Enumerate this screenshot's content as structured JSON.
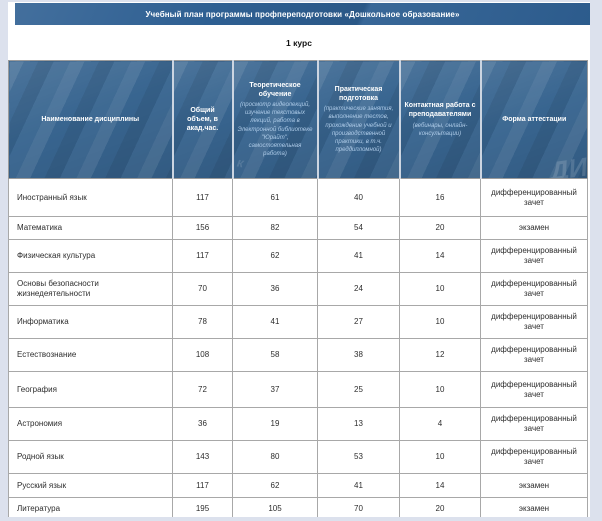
{
  "page": {
    "title": "Учебный план программы профпереподготовки «Дошкольное образование»",
    "course_label": "1 курс"
  },
  "table": {
    "columns": [
      {
        "title": "Наименование дисциплины",
        "subtitle": ""
      },
      {
        "title": "Общий объем, в акад.час.",
        "subtitle": ""
      },
      {
        "title": "Теоретическое обучение",
        "subtitle": "(просмотр видеолекций, изучение текстовых лекций, работа в Электронной библиотеке \"Юрайт\", самостоятельная работа)"
      },
      {
        "title": "Практическая подготовка",
        "subtitle": "(практические занятия, выполнение тестов, прохождение учебной и производственной практики, в т.ч. преддипломной)"
      },
      {
        "title": "Контактная работа с преподавателями",
        "subtitle": "(вебинары, онлайн-консультации)"
      },
      {
        "title": "Форма аттестации",
        "subtitle": ""
      }
    ],
    "rows": [
      {
        "discipline": "Иностранный язык",
        "total": "117",
        "theory": "61",
        "practice": "40",
        "contact": "16",
        "assessment": "дифференцированный зачет"
      },
      {
        "discipline": "Математика",
        "total": "156",
        "theory": "82",
        "practice": "54",
        "contact": "20",
        "assessment": "экзамен"
      },
      {
        "discipline": "Физическая культура",
        "total": "117",
        "theory": "62",
        "practice": "41",
        "contact": "14",
        "assessment": "дифференцированный зачет"
      },
      {
        "discipline": "Основы безопасности жизнедеятельности",
        "total": "70",
        "theory": "36",
        "practice": "24",
        "contact": "10",
        "assessment": "дифференцированный зачет"
      },
      {
        "discipline": "Информатика",
        "total": "78",
        "theory": "41",
        "practice": "27",
        "contact": "10",
        "assessment": "дифференцированный зачет"
      },
      {
        "discipline": "Естествознание",
        "total": "108",
        "theory": "58",
        "practice": "38",
        "contact": "12",
        "assessment": "дифференцированный зачет"
      },
      {
        "discipline": "География",
        "total": "72",
        "theory": "37",
        "practice": "25",
        "contact": "10",
        "assessment": "дифференцированный зачет"
      },
      {
        "discipline": "Астрономия",
        "total": "36",
        "theory": "19",
        "practice": "13",
        "contact": "4",
        "assessment": "дифференцированный зачет"
      },
      {
        "discipline": "Родной язык",
        "total": "143",
        "theory": "80",
        "practice": "53",
        "contact": "10",
        "assessment": "дифференцированный зачет"
      },
      {
        "discipline": "Русский язык",
        "total": "117",
        "theory": "62",
        "practice": "41",
        "contact": "14",
        "assessment": "экзамен"
      },
      {
        "discipline": "Литература",
        "total": "195",
        "theory": "105",
        "practice": "70",
        "contact": "20",
        "assessment": "экзамен"
      }
    ]
  },
  "decor": {
    "watermark": "ДИ",
    "letter": "к"
  },
  "colors": {
    "titlebar": "#2e5f92",
    "headerbg": "#386590",
    "headersub": "#aecbe8",
    "pagebg": "#dce1ed",
    "border": "#a8a8a8",
    "headerline": "#ccd5e1",
    "text": "#2d2d2d"
  }
}
